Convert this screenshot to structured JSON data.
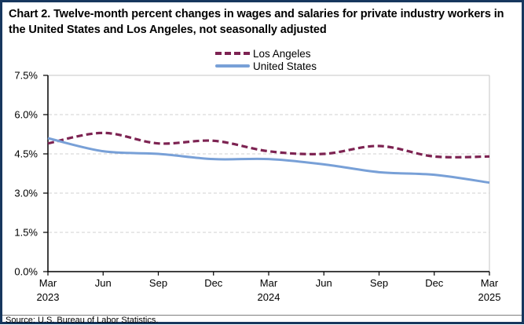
{
  "figure": {
    "title": "Chart 2. Twelve-month percent changes in wages and salaries for private industry workers in the United States and Los Angeles, not seasonally adjusted",
    "source": "Source: U.S. Bureau of Labor Statistics.",
    "border_color": "#17375E",
    "background_color": "#ffffff"
  },
  "legend": {
    "items": [
      {
        "label": "Los Angeles",
        "style": "dashed",
        "color": "#7D2352"
      },
      {
        "label": "United States",
        "style": "solid",
        "color": "#78A0D7"
      }
    ]
  },
  "chart_data": {
    "type": "line",
    "title": "Chart 2. Twelve-month percent changes in wages and salaries for private industry workers in the United States and Los Angeles, not seasonally adjusted",
    "categories": [
      "Mar 2023",
      "Jun 2023",
      "Sep 2023",
      "Dec 2023",
      "Mar 2024",
      "Jun 2024",
      "Sep 2024",
      "Dec 2024",
      "Mar 2025"
    ],
    "x_tick_labels": [
      [
        "Mar",
        "2023"
      ],
      [
        "Jun",
        ""
      ],
      [
        "Sep",
        ""
      ],
      [
        "Dec",
        ""
      ],
      [
        "Mar",
        "2024"
      ],
      [
        "Jun",
        ""
      ],
      [
        "Sep",
        ""
      ],
      [
        "Dec",
        ""
      ],
      [
        "Mar",
        "2025"
      ]
    ],
    "series": [
      {
        "name": "Los Angeles",
        "values": [
          4.9,
          5.3,
          4.9,
          5.0,
          4.6,
          4.5,
          4.8,
          4.4,
          4.4
        ],
        "color": "#7D2352",
        "dashed": true,
        "unit": "%"
      },
      {
        "name": "United States",
        "values": [
          5.1,
          4.6,
          4.5,
          4.3,
          4.3,
          4.1,
          3.8,
          3.7,
          3.4
        ],
        "color": "#78A0D7",
        "dashed": false,
        "unit": "%"
      }
    ],
    "xlabel": "",
    "ylabel": "",
    "ylim": [
      0,
      7.5
    ],
    "ytick_step": 1.5,
    "ytick_labels": [
      "0.0%",
      "1.5%",
      "3.0%",
      "4.5%",
      "6.0%",
      "7.5%"
    ],
    "grid": "horizontal dashed, on",
    "legend_position": "top-center",
    "line_style": "smoothed",
    "axis_color": "#000000",
    "grid_color": "#D2D2D2",
    "plot_border_color": "#C6C6C6"
  }
}
